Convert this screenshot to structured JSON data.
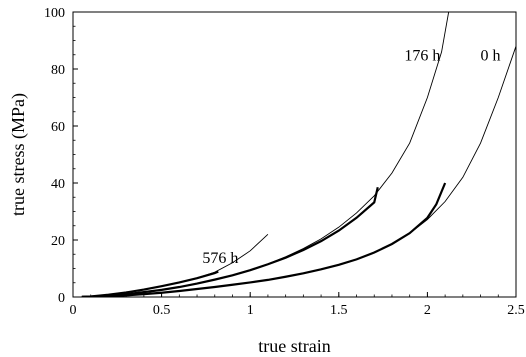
{
  "chart_data": {
    "type": "line",
    "xlabel": "true strain",
    "ylabel": "true stress (MPa)",
    "xlim": [
      0,
      2.5
    ],
    "ylim": [
      0,
      100
    ],
    "xticks": [
      0,
      0.5,
      1,
      1.5,
      2,
      2.5
    ],
    "yticks": [
      0,
      20,
      40,
      60,
      80,
      100
    ],
    "xtick_labels": [
      "0",
      "0.5",
      "1",
      "1.5",
      "2",
      "2.5"
    ],
    "ytick_labels": [
      "0",
      "20",
      "40",
      "60",
      "80",
      "100"
    ],
    "grid": false,
    "series": [
      {
        "name": "576 h",
        "label_at": [
          0.73,
          12
        ],
        "experimental": {
          "x": [
            0.05,
            0.1,
            0.2,
            0.3,
            0.4,
            0.5,
            0.6,
            0.7,
            0.8,
            0.82
          ],
          "y": [
            0.05,
            0.2,
            0.8,
            1.6,
            2.6,
            3.8,
            5.1,
            6.6,
            8.4,
            8.9
          ]
        },
        "model": {
          "x": [
            0.05,
            0.1,
            0.2,
            0.3,
            0.4,
            0.5,
            0.6,
            0.7,
            0.8,
            0.9,
            1.0,
            1.1
          ],
          "y": [
            0.05,
            0.2,
            0.8,
            1.6,
            2.6,
            3.8,
            5.1,
            6.7,
            8.7,
            12.0,
            16.2,
            22.0
          ]
        }
      },
      {
        "name": "176 h",
        "label_at": [
          1.87,
          83
        ],
        "experimental": {
          "x": [
            0.05,
            0.1,
            0.2,
            0.3,
            0.4,
            0.5,
            0.6,
            0.7,
            0.8,
            0.9,
            1.0,
            1.1,
            1.2,
            1.3,
            1.4,
            1.5,
            1.6,
            1.7,
            1.72
          ],
          "y": [
            0.05,
            0.15,
            0.5,
            1.0,
            1.7,
            2.5,
            3.5,
            4.7,
            6.1,
            7.6,
            9.4,
            11.5,
            13.8,
            16.5,
            19.6,
            23.3,
            27.8,
            33.2,
            38.5
          ]
        },
        "model": {
          "x": [
            0.05,
            0.1,
            0.2,
            0.3,
            0.4,
            0.5,
            0.6,
            0.7,
            0.8,
            0.9,
            1.0,
            1.1,
            1.2,
            1.3,
            1.4,
            1.5,
            1.6,
            1.7,
            1.8,
            1.9,
            2.0,
            2.08,
            2.12
          ],
          "y": [
            0.05,
            0.15,
            0.5,
            1.0,
            1.7,
            2.5,
            3.5,
            4.7,
            6.1,
            7.7,
            9.5,
            11.6,
            14.1,
            17.0,
            20.4,
            24.5,
            29.5,
            35.5,
            43.5,
            54.0,
            70.0,
            86.0,
            100
          ]
        }
      },
      {
        "name": "0 h",
        "label_at": [
          2.3,
          83
        ],
        "experimental": {
          "x": [
            0.05,
            0.1,
            0.2,
            0.3,
            0.4,
            0.5,
            0.6,
            0.7,
            0.8,
            0.9,
            1.0,
            1.1,
            1.2,
            1.3,
            1.4,
            1.5,
            1.6,
            1.7,
            1.8,
            1.9,
            2.0,
            2.05,
            2.1
          ],
          "y": [
            0.02,
            0.08,
            0.3,
            0.6,
            1.0,
            1.5,
            2.1,
            2.8,
            3.5,
            4.3,
            5.1,
            6.0,
            7.1,
            8.3,
            9.7,
            11.3,
            13.2,
            15.6,
            18.6,
            22.4,
            27.8,
            32.5,
            40.0
          ]
        },
        "model": {
          "x": [
            0.05,
            0.1,
            0.2,
            0.3,
            0.4,
            0.5,
            0.6,
            0.7,
            0.8,
            0.9,
            1.0,
            1.1,
            1.2,
            1.3,
            1.4,
            1.5,
            1.6,
            1.7,
            1.8,
            1.9,
            2.0,
            2.1,
            2.2,
            2.3,
            2.4,
            2.5
          ],
          "y": [
            0.02,
            0.08,
            0.3,
            0.6,
            1.0,
            1.5,
            2.1,
            2.8,
            3.5,
            4.3,
            5.1,
            6.0,
            7.1,
            8.3,
            9.7,
            11.3,
            13.2,
            15.6,
            18.6,
            22.3,
            27.2,
            33.5,
            42.0,
            54.0,
            70.0,
            88.0
          ]
        }
      }
    ]
  }
}
